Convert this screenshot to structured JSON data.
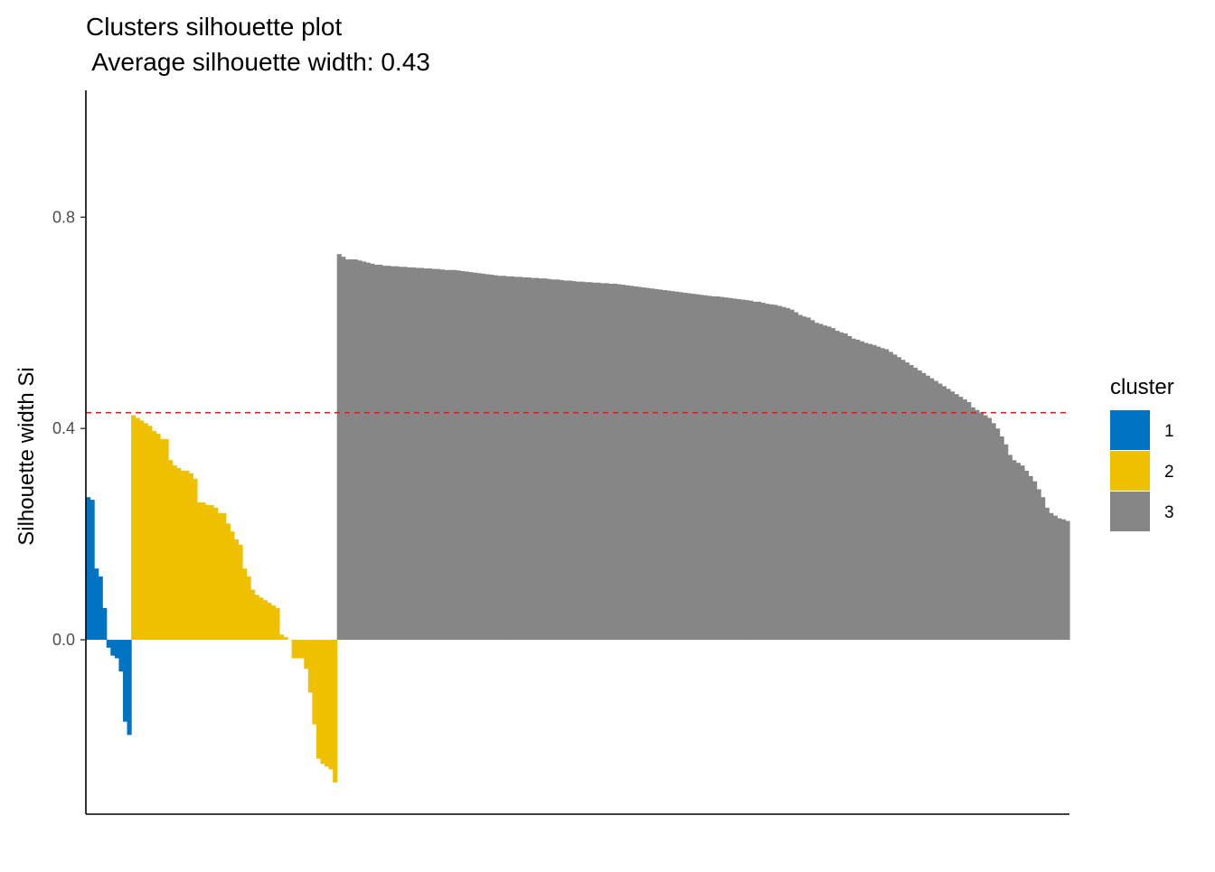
{
  "chart_data": {
    "type": "bar",
    "title": "Clusters silhouette plot",
    "subtitle": " Average silhouette width: 0.43",
    "ylabel": "Silhouette width Si",
    "xlabel": "",
    "ylim": [
      -0.33,
      1.04
    ],
    "yticks": [
      0.0,
      0.4,
      0.8
    ],
    "ytick_labels": [
      "0.0",
      "0.4",
      "0.8"
    ],
    "average_line": {
      "value": 0.43,
      "color": "#e41a1c",
      "style": "dashed"
    },
    "grid": false,
    "legend": {
      "title": "cluster",
      "position": "right",
      "entries": [
        {
          "label": "1",
          "color": "#0073c2"
        },
        {
          "label": "2",
          "color": "#efc000"
        },
        {
          "label": "3",
          "color": "#868686"
        }
      ]
    },
    "series": [
      {
        "name": "1",
        "color": "#0073c2",
        "values": [
          0.27,
          0.265,
          0.135,
          0.12,
          0.06,
          -0.015,
          -0.03,
          -0.035,
          -0.06,
          -0.155,
          -0.18
        ]
      },
      {
        "name": "2",
        "color": "#efc000",
        "values": [
          0.425,
          0.42,
          0.415,
          0.41,
          0.405,
          0.395,
          0.39,
          0.38,
          0.38,
          0.34,
          0.33,
          0.325,
          0.32,
          0.32,
          0.315,
          0.305,
          0.26,
          0.26,
          0.255,
          0.255,
          0.25,
          0.24,
          0.24,
          0.22,
          0.205,
          0.19,
          0.18,
          0.135,
          0.12,
          0.095,
          0.085,
          0.08,
          0.075,
          0.07,
          0.065,
          0.06,
          0.01,
          0.005,
          0.0,
          -0.035,
          -0.035,
          -0.035,
          -0.055,
          -0.1,
          -0.16,
          -0.225,
          -0.235,
          -0.24,
          -0.245,
          -0.27
        ]
      },
      {
        "name": "3",
        "color": "#868686",
        "values": [
          0.73,
          0.725,
          0.72,
          0.72,
          0.72,
          0.718,
          0.716,
          0.714,
          0.712,
          0.71,
          0.71,
          0.708,
          0.708,
          0.707,
          0.707,
          0.706,
          0.706,
          0.705,
          0.705,
          0.704,
          0.704,
          0.703,
          0.703,
          0.702,
          0.702,
          0.701,
          0.7,
          0.7,
          0.7,
          0.699,
          0.698,
          0.697,
          0.696,
          0.695,
          0.694,
          0.693,
          0.692,
          0.691,
          0.69,
          0.689,
          0.689,
          0.688,
          0.688,
          0.687,
          0.687,
          0.686,
          0.686,
          0.685,
          0.685,
          0.684,
          0.684,
          0.683,
          0.682,
          0.682,
          0.681,
          0.68,
          0.68,
          0.679,
          0.678,
          0.678,
          0.677,
          0.677,
          0.676,
          0.676,
          0.675,
          0.675,
          0.674,
          0.674,
          0.673,
          0.672,
          0.671,
          0.67,
          0.669,
          0.668,
          0.667,
          0.666,
          0.665,
          0.664,
          0.663,
          0.662,
          0.661,
          0.66,
          0.659,
          0.658,
          0.657,
          0.656,
          0.655,
          0.654,
          0.653,
          0.652,
          0.651,
          0.65,
          0.65,
          0.649,
          0.648,
          0.647,
          0.646,
          0.645,
          0.644,
          0.643,
          0.642,
          0.64,
          0.64,
          0.638,
          0.636,
          0.635,
          0.634,
          0.632,
          0.63,
          0.628,
          0.625,
          0.62,
          0.615,
          0.612,
          0.61,
          0.605,
          0.6,
          0.598,
          0.595,
          0.593,
          0.59,
          0.585,
          0.582,
          0.58,
          0.575,
          0.57,
          0.568,
          0.565,
          0.562,
          0.56,
          0.558,
          0.555,
          0.552,
          0.55,
          0.545,
          0.54,
          0.535,
          0.53,
          0.525,
          0.52,
          0.515,
          0.51,
          0.505,
          0.5,
          0.495,
          0.49,
          0.485,
          0.48,
          0.475,
          0.47,
          0.465,
          0.46,
          0.455,
          0.45,
          0.44,
          0.435,
          0.43,
          0.425,
          0.42,
          0.41,
          0.4,
          0.385,
          0.37,
          0.35,
          0.34,
          0.335,
          0.33,
          0.32,
          0.31,
          0.3,
          0.285,
          0.27,
          0.25,
          0.24,
          0.235,
          0.23,
          0.228,
          0.225
        ]
      }
    ]
  }
}
